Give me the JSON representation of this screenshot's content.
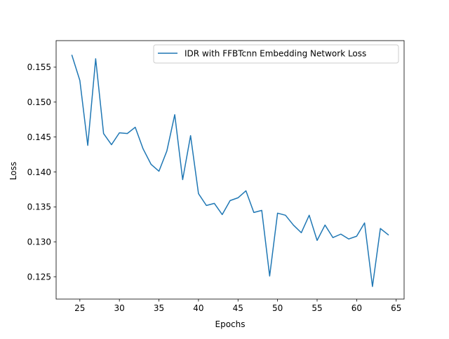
{
  "chart_data": {
    "type": "line",
    "title": "",
    "xlabel": "Epochs",
    "ylabel": "Loss",
    "xlim": [
      22.0,
      66.0
    ],
    "ylim": [
      0.1218,
      0.1588
    ],
    "xticks": [
      25,
      30,
      35,
      40,
      45,
      50,
      55,
      60,
      65
    ],
    "xtick_labels": [
      "25",
      "30",
      "35",
      "40",
      "45",
      "50",
      "55",
      "60",
      "65"
    ],
    "yticks": [
      0.125,
      0.13,
      0.135,
      0.14,
      0.145,
      0.15,
      0.155
    ],
    "ytick_labels": [
      "0.125",
      "0.130",
      "0.135",
      "0.140",
      "0.145",
      "0.150",
      "0.155"
    ],
    "grid": false,
    "legend_position": "top-right",
    "series": [
      {
        "name": "IDR with FFBTcnn Embedding Network Loss",
        "color": "#1f77b4",
        "x": [
          24,
          25,
          26,
          27,
          28,
          29,
          30,
          31,
          32,
          33,
          34,
          35,
          36,
          37,
          38,
          39,
          40,
          41,
          42,
          43,
          44,
          45,
          46,
          47,
          48,
          49,
          50,
          51,
          52,
          53,
          54,
          55,
          56,
          57,
          58,
          59,
          60,
          61,
          62,
          63,
          64
        ],
        "y": [
          0.1567,
          0.1531,
          0.1438,
          0.1562,
          0.1455,
          0.1439,
          0.1456,
          0.1455,
          0.1464,
          0.1433,
          0.1411,
          0.1401,
          0.143,
          0.1482,
          0.1389,
          0.1452,
          0.1369,
          0.1352,
          0.1355,
          0.1339,
          0.1359,
          0.1363,
          0.1373,
          0.1342,
          0.1345,
          0.1251,
          0.1341,
          0.1338,
          0.1324,
          0.1313,
          0.1338,
          0.1302,
          0.1324,
          0.1306,
          0.1311,
          0.1304,
          0.1308,
          0.1327,
          0.1236,
          0.1319,
          0.131
        ]
      }
    ]
  }
}
